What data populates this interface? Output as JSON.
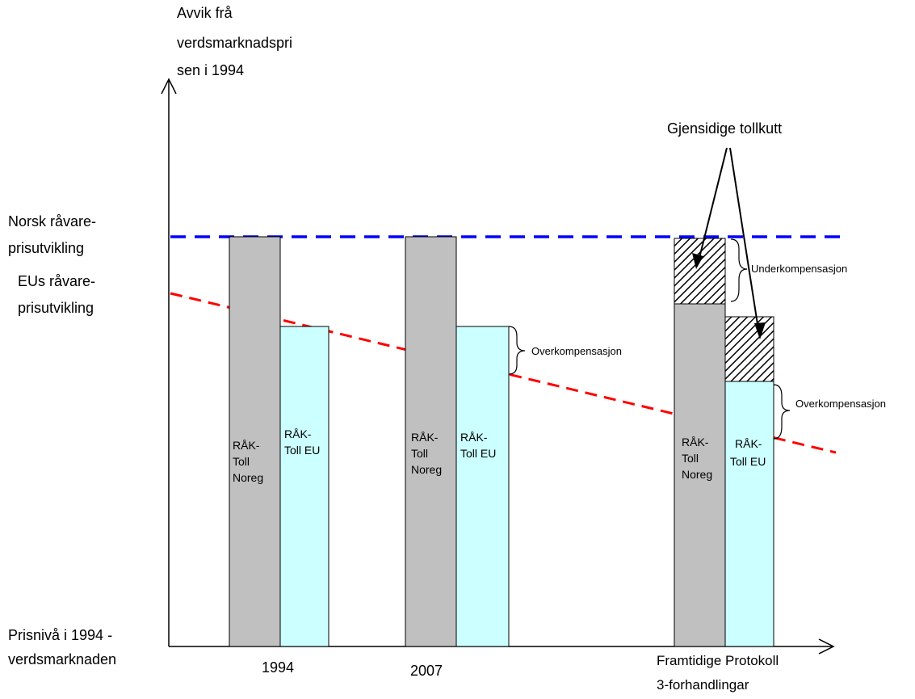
{
  "y_axis_title": [
    "Avvik frå",
    "verdsmarknadspri",
    "sen i 1994"
  ],
  "norsk_line_label": [
    "Norsk råvare-",
    "prisutvikling"
  ],
  "eu_line_label": [
    "EUs råvare-",
    "prisutvikling"
  ],
  "origin_label": [
    "Prisnivå i 1994 -",
    "verdsmarknaden"
  ],
  "categories": [
    {
      "label": [
        "1994"
      ]
    },
    {
      "label": [
        "2007"
      ]
    },
    {
      "label": [
        "Framtidige Protokoll",
        "3-forhandlingar"
      ]
    }
  ],
  "bar_labels": {
    "noreg": [
      "RÅK-",
      "Toll",
      "Noreg"
    ],
    "eu": [
      "RÅK-",
      "Toll EU"
    ]
  },
  "annotations": {
    "mutual_cuts": "Gjensidige tollkutt",
    "under": "Underkompensasjon",
    "over": "Overkompensasjon"
  },
  "colors": {
    "noreg_bar": "#c0c0c0",
    "eu_bar": "#ccffff",
    "norsk_line": "#0000ff",
    "eu_line": "#ff0000"
  }
}
